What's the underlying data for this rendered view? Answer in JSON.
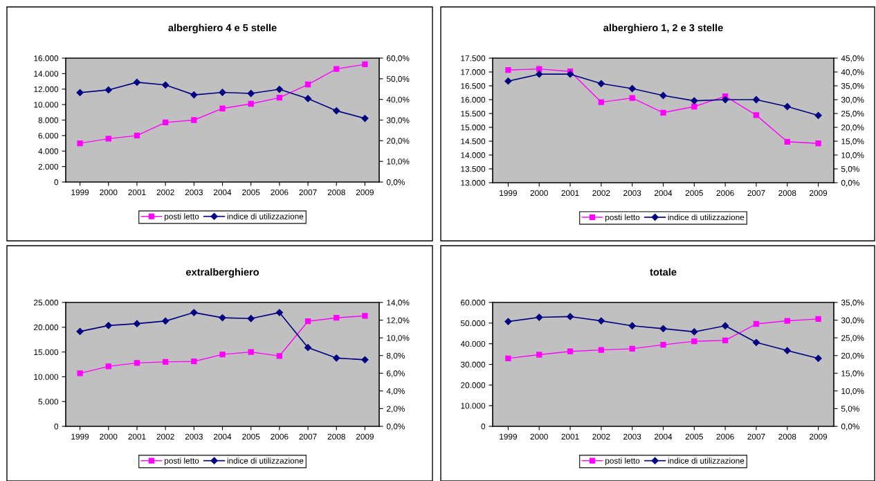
{
  "chart_data": [
    {
      "type": "line",
      "title": "alberghiero 4 e 5 stelle",
      "categories": [
        "1999",
        "2000",
        "2001",
        "2002",
        "2003",
        "2004",
        "2005",
        "2006",
        "2007",
        "2008",
        "2009"
      ],
      "series": [
        {
          "name": "posti letto",
          "color": "#ff00ff",
          "marker": "square",
          "values": [
            5000,
            5600,
            6000,
            7700,
            8000,
            9500,
            10100,
            10900,
            12600,
            14600,
            15200
          ]
        },
        {
          "name": "indice di utilizzazione",
          "color": "#000080",
          "marker": "diamond",
          "axis": "y2",
          "values": [
            43.3,
            44.6,
            48.3,
            47.0,
            42.2,
            43.4,
            42.9,
            44.9,
            40.4,
            34.5,
            30.8
          ]
        }
      ],
      "ylim": [
        0,
        16000
      ],
      "yticks": [
        {
          "value": 0,
          "label": "0"
        },
        {
          "value": 2000,
          "label": "2.000"
        },
        {
          "value": 4000,
          "label": "4.000"
        },
        {
          "value": 6000,
          "label": "6.000"
        },
        {
          "value": 8000,
          "label": "8.000"
        },
        {
          "value": 10000,
          "label": "10.000"
        },
        {
          "value": 12000,
          "label": "12.000"
        },
        {
          "value": 14000,
          "label": "14.000"
        },
        {
          "value": 16000,
          "label": "16.000"
        }
      ],
      "y2lim": [
        0,
        60
      ],
      "y2ticks": [
        {
          "value": 0,
          "label": "0,0%"
        },
        {
          "value": 10,
          "label": "10,0%"
        },
        {
          "value": 20,
          "label": "20,0%"
        },
        {
          "value": 30,
          "label": "30,0%"
        },
        {
          "value": 40,
          "label": "40,0%"
        },
        {
          "value": 50,
          "label": "50,0%"
        },
        {
          "value": 60,
          "label": "60,0%"
        }
      ],
      "grid": false,
      "legend": "bottom"
    },
    {
      "type": "line",
      "title": "alberghiero 1, 2 e 3 stelle",
      "categories": [
        "1999",
        "2000",
        "2001",
        "2002",
        "2003",
        "2004",
        "2005",
        "2006",
        "2007",
        "2008",
        "2009"
      ],
      "series": [
        {
          "name": "posti letto",
          "color": "#ff00ff",
          "marker": "square",
          "values": [
            17070,
            17110,
            17020,
            15910,
            16060,
            15530,
            15750,
            16120,
            15440,
            14480,
            14420
          ]
        },
        {
          "name": "indice di utilizzazione",
          "color": "#000080",
          "marker": "diamond",
          "axis": "y2",
          "values": [
            36.7,
            39.2,
            39.2,
            35.8,
            34.0,
            31.5,
            29.6,
            30.0,
            30.0,
            27.5,
            24.3
          ]
        }
      ],
      "ylim": [
        13000,
        17500
      ],
      "yticks": [
        {
          "value": 13000,
          "label": "13.000"
        },
        {
          "value": 13500,
          "label": "13.500"
        },
        {
          "value": 14000,
          "label": "14.000"
        },
        {
          "value": 14500,
          "label": "14.500"
        },
        {
          "value": 15000,
          "label": "15.000"
        },
        {
          "value": 15500,
          "label": "15.500"
        },
        {
          "value": 16000,
          "label": "16.000"
        },
        {
          "value": 16500,
          "label": "16.500"
        },
        {
          "value": 17000,
          "label": "17.000"
        },
        {
          "value": 17500,
          "label": "17.500"
        }
      ],
      "y2lim": [
        0,
        45
      ],
      "y2ticks": [
        {
          "value": 0,
          "label": "0,0%"
        },
        {
          "value": 5,
          "label": "5,0%"
        },
        {
          "value": 10,
          "label": "10,0%"
        },
        {
          "value": 15,
          "label": "15,0%"
        },
        {
          "value": 20,
          "label": "20,0%"
        },
        {
          "value": 25,
          "label": "25,0%"
        },
        {
          "value": 30,
          "label": "30,0%"
        },
        {
          "value": 35,
          "label": "35,0%"
        },
        {
          "value": 40,
          "label": "40,0%"
        },
        {
          "value": 45,
          "label": "45,0%"
        }
      ],
      "grid": false,
      "legend": "bottom"
    },
    {
      "type": "line",
      "title": "extralberghiero",
      "categories": [
        "1999",
        "2000",
        "2001",
        "2002",
        "2003",
        "2004",
        "2005",
        "2006",
        "2007",
        "2008",
        "2009"
      ],
      "series": [
        {
          "name": "posti letto",
          "color": "#ff00ff",
          "marker": "square",
          "values": [
            10700,
            12100,
            12800,
            13000,
            13100,
            14500,
            15000,
            14200,
            21200,
            21900,
            22300
          ]
        },
        {
          "name": "indice di utilizzazione",
          "color": "#000080",
          "marker": "diamond",
          "axis": "y2",
          "values": [
            10.72,
            11.39,
            11.6,
            11.9,
            12.86,
            12.27,
            12.18,
            12.86,
            8.9,
            7.72,
            7.52
          ]
        }
      ],
      "ylim": [
        0,
        25000
      ],
      "yticks": [
        {
          "value": 0,
          "label": "0"
        },
        {
          "value": 5000,
          "label": "5.000"
        },
        {
          "value": 10000,
          "label": "10.000"
        },
        {
          "value": 15000,
          "label": "15.000"
        },
        {
          "value": 20000,
          "label": "20.000"
        },
        {
          "value": 25000,
          "label": "25.000"
        }
      ],
      "y2lim": [
        0,
        14
      ],
      "y2ticks": [
        {
          "value": 0,
          "label": "0,0%"
        },
        {
          "value": 2,
          "label": "2,0%"
        },
        {
          "value": 4,
          "label": "4,0%"
        },
        {
          "value": 6,
          "label": "6,0%"
        },
        {
          "value": 8,
          "label": "8,0%"
        },
        {
          "value": 10,
          "label": "10,0%"
        },
        {
          "value": 12,
          "label": "12,0%"
        },
        {
          "value": 14,
          "label": "14,0%"
        }
      ],
      "grid": false,
      "legend": "bottom"
    },
    {
      "type": "line",
      "title": "totale",
      "categories": [
        "1999",
        "2000",
        "2001",
        "2002",
        "2003",
        "2004",
        "2005",
        "2006",
        "2007",
        "2008",
        "2009"
      ],
      "series": [
        {
          "name": "posti letto",
          "color": "#ff00ff",
          "marker": "square",
          "values": [
            32900,
            34700,
            36300,
            37000,
            37600,
            39500,
            41200,
            41600,
            49600,
            51100,
            52000
          ]
        },
        {
          "name": "indice di utilizzazione",
          "color": "#000080",
          "marker": "diamond",
          "axis": "y2",
          "values": [
            29.6,
            30.8,
            31.0,
            29.8,
            28.4,
            27.6,
            26.7,
            28.4,
            23.7,
            21.4,
            19.2
          ]
        }
      ],
      "ylim": [
        0,
        60000
      ],
      "yticks": [
        {
          "value": 0,
          "label": "0"
        },
        {
          "value": 10000,
          "label": "10.000"
        },
        {
          "value": 20000,
          "label": "20.000"
        },
        {
          "value": 30000,
          "label": "30.000"
        },
        {
          "value": 40000,
          "label": "40.000"
        },
        {
          "value": 50000,
          "label": "50.000"
        },
        {
          "value": 60000,
          "label": "60.000"
        }
      ],
      "y2lim": [
        0,
        35
      ],
      "y2ticks": [
        {
          "value": 0,
          "label": "0,0%"
        },
        {
          "value": 5,
          "label": "5,0%"
        },
        {
          "value": 10,
          "label": "10,0%"
        },
        {
          "value": 15,
          "label": "15,0%"
        },
        {
          "value": 20,
          "label": "20,0%"
        },
        {
          "value": 25,
          "label": "25,0%"
        },
        {
          "value": 30,
          "label": "30,0%"
        },
        {
          "value": 35,
          "label": "35,0%"
        }
      ],
      "grid": false,
      "legend": "bottom"
    }
  ]
}
